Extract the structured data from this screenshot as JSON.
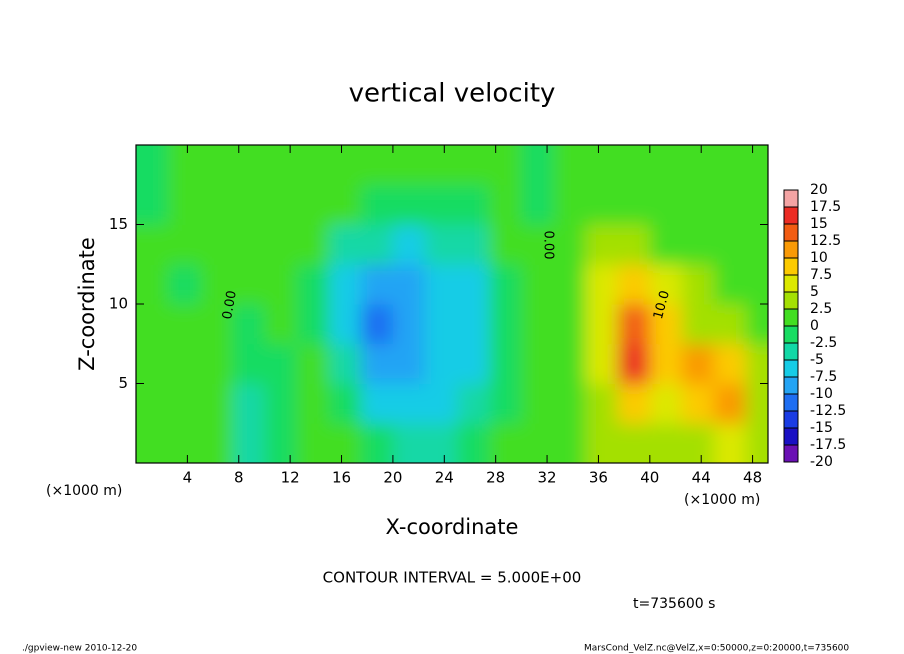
{
  "chart_data": {
    "type": "contour",
    "title": "vertical velocity",
    "xlabel": "X-coordinate",
    "ylabel": "Z-coordinate",
    "xunit": "(×1000 m)",
    "yunit": "(×1000 m)",
    "xlim": [
      0,
      49.2
    ],
    "ylim": [
      0,
      20
    ],
    "xticks": [
      4,
      8,
      12,
      16,
      20,
      24,
      28,
      32,
      36,
      40,
      44,
      48
    ],
    "yticks": [
      5,
      10,
      15
    ],
    "x": [
      1.25,
      3.75,
      6.25,
      8.75,
      11.25,
      13.75,
      16.25,
      18.75,
      21.25,
      23.75,
      26.25,
      28.75,
      31.25,
      33.75,
      36.25,
      38.75,
      41.25,
      43.75,
      46.25,
      48.75
    ],
    "y": [
      1.25,
      3.75,
      6.25,
      8.75,
      11.25,
      13.75,
      16.25,
      18.75
    ],
    "z": [
      [
        0,
        1,
        1,
        -3,
        -1,
        2,
        1,
        -2,
        -3,
        -3,
        -2,
        0,
        1,
        2,
        3,
        4,
        3,
        4,
        5,
        3
      ],
      [
        0.5,
        1,
        0,
        -4,
        -2,
        1,
        -2,
        -6,
        -7,
        -6,
        -5,
        -2,
        1,
        1,
        4,
        9,
        5,
        9,
        10,
        4
      ],
      [
        0.5,
        1,
        1,
        -2,
        -1,
        0,
        -4,
        -9,
        -9,
        -7,
        -6,
        -2,
        0,
        2,
        6,
        15,
        8,
        10,
        8,
        4
      ],
      [
        1,
        1,
        0,
        -1,
        0,
        -1,
        -6,
        -11,
        -9,
        -7,
        -6,
        -1,
        0,
        2,
        7,
        13,
        9,
        4,
        3,
        2
      ],
      [
        0,
        -1,
        1,
        0,
        0,
        -1,
        -6,
        -9,
        -8,
        -7,
        -6,
        -1,
        0,
        2,
        6,
        8,
        7,
        3,
        2,
        2
      ],
      [
        0,
        0,
        1,
        1,
        1,
        0,
        -3,
        -5,
        -6,
        -5,
        -4,
        0,
        0,
        2,
        4,
        3,
        2,
        2,
        2,
        2
      ],
      [
        -0.5,
        1,
        1,
        1,
        1,
        0,
        0,
        -1,
        -1,
        -1,
        -1,
        0,
        -0.5,
        1,
        1,
        1,
        1,
        2,
        2,
        2
      ],
      [
        -0.5,
        1,
        1,
        1,
        1,
        1,
        0,
        0,
        0,
        0,
        0,
        0,
        -0.5,
        1,
        1,
        1,
        1,
        1.5,
        2,
        2
      ]
    ],
    "levels": [
      -20,
      -17.5,
      -15,
      -12.5,
      -10,
      -7.5,
      -5,
      -2.5,
      0,
      2.5,
      5,
      7.5,
      10,
      12.5,
      15,
      17.5,
      20
    ],
    "colors": [
      "#6a10b4",
      "#1a10c4",
      "#1a3ce4",
      "#1e6ef2",
      "#24a4f4",
      "#16cce6",
      "#12d8a6",
      "#18dc62",
      "#42de22",
      "#a4e004",
      "#dce800",
      "#fcca00",
      "#fa9a06",
      "#f25c12",
      "#ec2c24",
      "#f4a4a4"
    ],
    "contour_labels": [
      "0.00",
      "0.00",
      "10.0"
    ],
    "contour_interval": "CONTOUR INTERVAL = 5.000E+00",
    "time": "t=735600 s",
    "footer_left": "./gpview-new  2010-12-20",
    "footer_right": "MarsCond_VelZ.nc@VelZ,x=0:50000,z=0:20000,t=735600"
  }
}
